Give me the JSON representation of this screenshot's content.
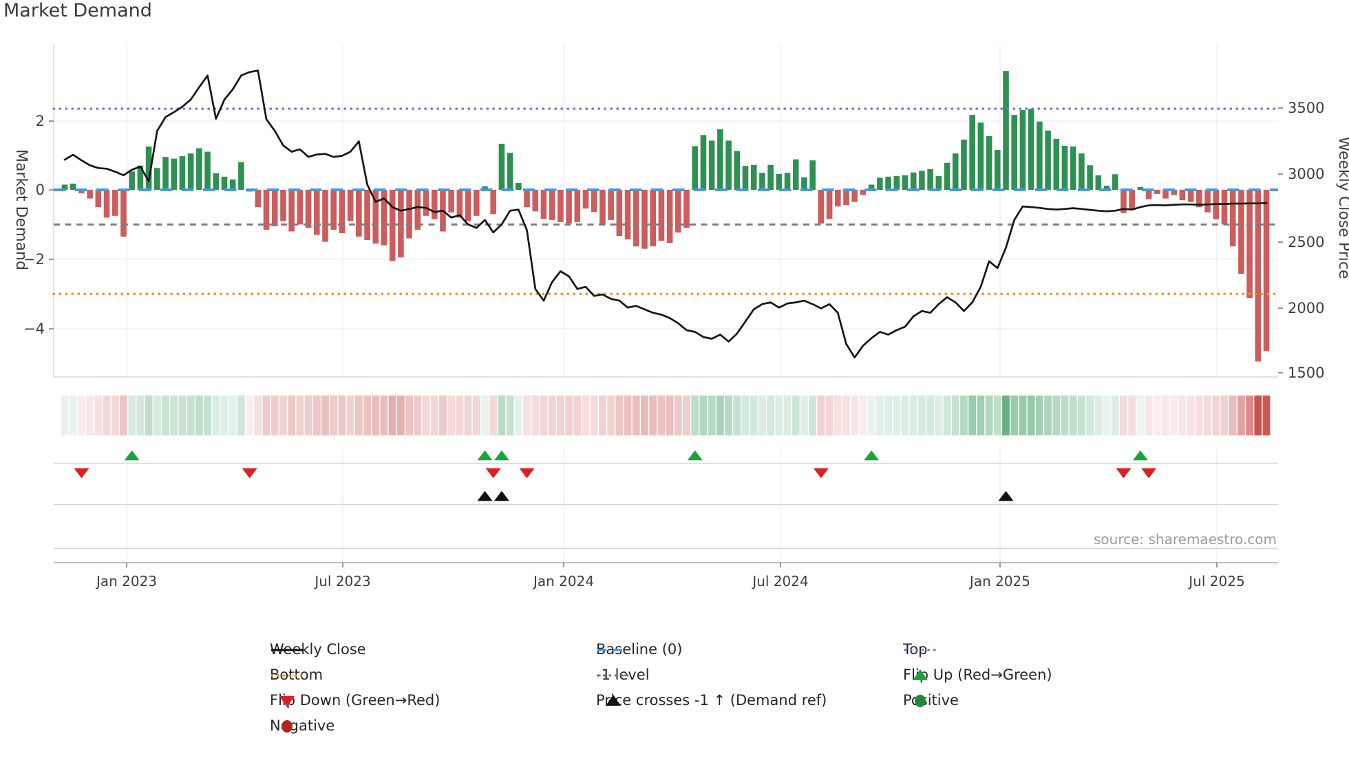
{
  "title": "Market Demand",
  "source": "source: sharemaestro.com",
  "axes": {
    "left": {
      "label": "Market Demand",
      "tick_labels": [
        "2",
        "0",
        "−2",
        "−4"
      ],
      "tick_values": [
        2,
        0,
        -2,
        -4
      ]
    },
    "right": {
      "label": "Weekly Close Price",
      "tick_labels": [
        "3500",
        "3000",
        "2500",
        "2000",
        "1500"
      ],
      "tick_values": [
        3500,
        3000,
        2500,
        2000,
        1500
      ]
    },
    "x": {
      "tick_labels": [
        "Jan 2023",
        "Jul 2023",
        "Jan 2024",
        "Jul 2024",
        "Jan 2025",
        "Jul 2025"
      ],
      "tick_week_indices": [
        7.37,
        33.09,
        59.38,
        85.18,
        111.3,
        137.1
      ]
    }
  },
  "chart_data": {
    "type": "combo",
    "title": "Market Demand",
    "x_unit": "week",
    "n_points": 144,
    "series": [
      {
        "name": "Market Demand",
        "type": "bar",
        "axis": "left",
        "values": [
          0.15,
          0.18,
          -0.1,
          -0.25,
          -0.5,
          -0.8,
          -0.75,
          -1.35,
          0.53,
          0.7,
          1.25,
          0.63,
          0.95,
          0.9,
          0.97,
          1.05,
          1.2,
          1.1,
          0.48,
          0.38,
          0.3,
          0.8,
          -0.05,
          -0.5,
          -1.15,
          -1.05,
          -0.9,
          -1.2,
          -1.0,
          -1.1,
          -1.3,
          -1.5,
          -1.15,
          -1.25,
          -0.9,
          -1.35,
          -1.45,
          -1.55,
          -1.6,
          -2.05,
          -1.95,
          -1.4,
          -1.15,
          -0.75,
          -0.85,
          -1.2,
          -0.65,
          -0.8,
          -0.9,
          -0.75,
          0.1,
          -0.7,
          1.33,
          1.07,
          0.2,
          -0.5,
          -0.62,
          -0.84,
          -0.87,
          -0.93,
          -0.97,
          -0.93,
          -0.54,
          -0.64,
          -1.01,
          -0.87,
          -1.33,
          -1.43,
          -1.63,
          -1.7,
          -1.63,
          -1.47,
          -1.53,
          -1.23,
          -1.1,
          1.26,
          1.58,
          1.42,
          1.75,
          1.42,
          1.12,
          0.69,
          0.72,
          0.49,
          0.72,
          0.46,
          0.49,
          0.88,
          0.36,
          0.85,
          -0.97,
          -0.84,
          -0.48,
          -0.44,
          -0.35,
          -0.15,
          0.15,
          0.35,
          0.38,
          0.4,
          0.42,
          0.5,
          0.55,
          0.6,
          0.4,
          0.78,
          1.05,
          1.45,
          2.16,
          1.94,
          1.55,
          1.15,
          3.43,
          2.16,
          2.3,
          2.34,
          1.97,
          1.71,
          1.47,
          1.27,
          1.25,
          1.05,
          0.71,
          0.42,
          0.12,
          0.45,
          -0.67,
          -0.57,
          0.08,
          -0.27,
          -0.12,
          -0.25,
          -0.15,
          -0.3,
          -0.35,
          -0.5,
          -0.65,
          -0.85,
          -1.0,
          -1.63,
          -2.42,
          -3.12,
          -4.95,
          -4.65
        ]
      },
      {
        "name": "Weekly Close",
        "type": "line",
        "axis": "right",
        "values": [
          3108,
          3145,
          3103,
          3066,
          3045,
          3040,
          3017,
          2991,
          3032,
          3056,
          2946,
          3325,
          3429,
          3466,
          3507,
          3560,
          3654,
          3742,
          3416,
          3560,
          3638,
          3742,
          3768,
          3779,
          3413,
          3325,
          3215,
          3168,
          3186,
          3129,
          3147,
          3152,
          3129,
          3137,
          3168,
          3246,
          2920,
          2790,
          2816,
          2751,
          2724,
          2737,
          2751,
          2745,
          2714,
          2724,
          2672,
          2690,
          2620,
          2594,
          2654,
          2560,
          2620,
          2724,
          2732,
          2576,
          2135,
          2046,
          2187,
          2268,
          2229,
          2135,
          2150,
          2082,
          2093,
          2059,
          2046,
          1994,
          2007,
          1981,
          1955,
          1941,
          1915,
          1876,
          1824,
          1811,
          1772,
          1759,
          1790,
          1738,
          1798,
          1889,
          1981,
          2020,
          2033,
          1994,
          2025,
          2033,
          2046,
          2020,
          1988,
          2020,
          1955,
          1720,
          1618,
          1707,
          1764,
          1811,
          1790,
          1824,
          1850,
          1928,
          1968,
          1955,
          2020,
          2072,
          2033,
          1968,
          2033,
          2150,
          2343,
          2291,
          2445,
          2654,
          2756,
          2751,
          2745,
          2737,
          2732,
          2737,
          2743,
          2737,
          2730,
          2724,
          2719,
          2724,
          2737,
          2732,
          2751,
          2764,
          2766,
          2764,
          2769,
          2771,
          2771,
          2769,
          2771,
          2774,
          2774,
          2777,
          2777,
          2779,
          2779,
          2782
        ]
      }
    ],
    "reference_lines": {
      "top": 2.34,
      "baseline": 0,
      "minus1_level": -1,
      "bottom": -3
    },
    "markers": {
      "flip_up_weeks": [
        8,
        50,
        52,
        75,
        96,
        128
      ],
      "flip_down_weeks": [
        2,
        22,
        51,
        55,
        90,
        126,
        129
      ],
      "price_cross_weeks": [
        50,
        52,
        112
      ]
    },
    "heatmap": {
      "description": "weekly demand sign/strength strip",
      "positive_color": "#2e9152",
      "negative_color": "#cd5c5c"
    }
  },
  "legend": {
    "items": [
      {
        "row": 0,
        "col": 0,
        "marker": "line",
        "color": "#151515",
        "label": "Weekly Close"
      },
      {
        "row": 0,
        "col": 1,
        "marker": "dash",
        "color": "#4a98d9",
        "label": "Baseline (0)"
      },
      {
        "row": 0,
        "col": 2,
        "marker": "dots",
        "color": "#7d74e0",
        "label": "Top"
      },
      {
        "row": 1,
        "col": 0,
        "marker": "dots",
        "color": "#f0941f",
        "label": "Bottom"
      },
      {
        "row": 1,
        "col": 1,
        "marker": "dots",
        "color": "#7f7f7f",
        "label": "-1 level"
      },
      {
        "row": 1,
        "col": 2,
        "marker": "tri_up",
        "color": "#1aa53c",
        "label": "Flip Up (Red→Green)"
      },
      {
        "row": 2,
        "col": 0,
        "marker": "tri_down",
        "color": "#df1f1f",
        "label": "Flip Down (Green→Red)"
      },
      {
        "row": 2,
        "col": 1,
        "marker": "tri_up",
        "color": "#111111",
        "label": "Price crosses -1 ↑ (Demand ref)"
      },
      {
        "row": 2,
        "col": 2,
        "marker": "circle",
        "color": "#208b3a",
        "label": "Positive"
      },
      {
        "row": 3,
        "col": 0,
        "marker": "circle",
        "color": "#b22222",
        "label": "Negative"
      }
    ]
  },
  "colors": {
    "bar_positive": "#2e9152",
    "bar_negative": "#cd5c5c",
    "price_line": "#151515",
    "baseline": "#4a98d9",
    "top_line": "#7d74e0",
    "minus1_line": "#7f7f7f",
    "bottom_line": "#f0941f",
    "flip_up": "#1aa53c",
    "flip_down": "#df1f1f",
    "price_cross": "#111111",
    "grid": "#eceef4",
    "spine": "#d6d8e0",
    "separator": "#d7d7d7",
    "axis_line": "#b5b5b5",
    "text": "#3d3d3d",
    "muted_text": "#9b9b9b"
  }
}
